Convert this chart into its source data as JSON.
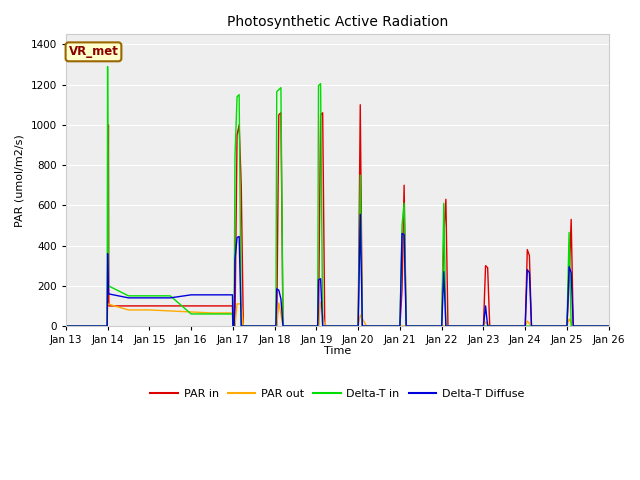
{
  "title": "Photosynthetic Active Radiation",
  "ylabel": "PAR (umol/m2/s)",
  "xlabel": "Time",
  "legend_label": "VR_met",
  "ylim": [
    0,
    1450
  ],
  "yticks": [
    0,
    200,
    400,
    600,
    800,
    1000,
    1200,
    1400
  ],
  "series_colors": {
    "PAR_in": "#dd0000",
    "PAR_out": "#ffaa00",
    "Delta_T_in": "#00dd00",
    "Delta_T_Diffuse": "#0000dd"
  },
  "series_labels": {
    "PAR_in": "PAR in",
    "PAR_out": "PAR out",
    "Delta_T_in": "Delta-T in",
    "Delta_T_Diffuse": "Delta-T Diffuse"
  },
  "background_color": "#ffffff",
  "plot_bg_color": "#eeeeee",
  "grid_color": "#ffffff",
  "x_start": 0,
  "x_end": 13,
  "xtick_positions": [
    0,
    1,
    2,
    3,
    4,
    5,
    6,
    7,
    8,
    9,
    10,
    11,
    12,
    13
  ],
  "xtick_labels": [
    "Jan 13",
    "Jan 14",
    "Jan 15",
    "Jan 16",
    "Jan 17",
    "Jan 18",
    "Jan 19",
    "Jan 20",
    "Jan 21",
    "Jan 22",
    "Jan 23",
    "Jan 24",
    "Jan 25",
    "Jan 26"
  ],
  "PAR_in": [
    [
      0,
      0
    ],
    [
      0.99,
      0
    ],
    [
      1.0,
      200
    ],
    [
      1.02,
      1000
    ],
    [
      1.03,
      100
    ],
    [
      1.5,
      100
    ],
    [
      2.0,
      100
    ],
    [
      2.5,
      100
    ],
    [
      3.0,
      100
    ],
    [
      3.5,
      100
    ],
    [
      3.99,
      100
    ],
    [
      4.0,
      0
    ],
    [
      4.05,
      0
    ],
    [
      4.1,
      950
    ],
    [
      4.15,
      1000
    ],
    [
      4.2,
      700
    ],
    [
      4.25,
      0
    ],
    [
      5.05,
      0
    ],
    [
      5.1,
      1050
    ],
    [
      5.15,
      1060
    ],
    [
      5.2,
      0
    ],
    [
      6.05,
      0
    ],
    [
      6.1,
      1050
    ],
    [
      6.15,
      1060
    ],
    [
      6.2,
      0
    ],
    [
      7.0,
      0
    ],
    [
      7.05,
      1100
    ],
    [
      7.1,
      0
    ],
    [
      8.0,
      0
    ],
    [
      8.05,
      180
    ],
    [
      8.1,
      700
    ],
    [
      8.15,
      0
    ],
    [
      9.0,
      0
    ],
    [
      9.05,
      450
    ],
    [
      9.1,
      630
    ],
    [
      9.15,
      0
    ],
    [
      10.0,
      0
    ],
    [
      10.05,
      300
    ],
    [
      10.1,
      290
    ],
    [
      10.15,
      0
    ],
    [
      11.0,
      0
    ],
    [
      11.05,
      380
    ],
    [
      11.1,
      350
    ],
    [
      11.15,
      0
    ],
    [
      12.0,
      0
    ],
    [
      12.05,
      220
    ],
    [
      12.1,
      530
    ],
    [
      12.15,
      0
    ],
    [
      13,
      0
    ]
  ],
  "PAR_out": [
    [
      0,
      0
    ],
    [
      0.99,
      0
    ],
    [
      1.0,
      110
    ],
    [
      1.5,
      80
    ],
    [
      2.0,
      80
    ],
    [
      2.5,
      75
    ],
    [
      3.0,
      70
    ],
    [
      3.5,
      65
    ],
    [
      3.99,
      65
    ],
    [
      4.0,
      0
    ],
    [
      4.05,
      0
    ],
    [
      4.1,
      110
    ],
    [
      4.2,
      110
    ],
    [
      4.25,
      0
    ],
    [
      5.05,
      0
    ],
    [
      5.1,
      115
    ],
    [
      5.2,
      0
    ],
    [
      6.05,
      0
    ],
    [
      6.1,
      120
    ],
    [
      6.2,
      0
    ],
    [
      7.0,
      0
    ],
    [
      7.05,
      55
    ],
    [
      7.2,
      0
    ],
    [
      8.0,
      0
    ],
    [
      8.15,
      0
    ],
    [
      9.0,
      0
    ],
    [
      9.15,
      0
    ],
    [
      10.0,
      0
    ],
    [
      10.05,
      20
    ],
    [
      10.15,
      0
    ],
    [
      11.0,
      0
    ],
    [
      11.05,
      25
    ],
    [
      11.15,
      0
    ],
    [
      12.0,
      0
    ],
    [
      12.05,
      35
    ],
    [
      12.15,
      0
    ],
    [
      13,
      0
    ]
  ],
  "Delta_T_in": [
    [
      0,
      0
    ],
    [
      0.99,
      0
    ],
    [
      1.0,
      1290
    ],
    [
      1.02,
      200
    ],
    [
      1.5,
      150
    ],
    [
      2.0,
      150
    ],
    [
      2.5,
      150
    ],
    [
      3.0,
      60
    ],
    [
      3.5,
      60
    ],
    [
      3.99,
      60
    ],
    [
      4.0,
      0
    ],
    [
      4.03,
      0
    ],
    [
      4.05,
      840
    ],
    [
      4.1,
      1140
    ],
    [
      4.15,
      1150
    ],
    [
      4.2,
      0
    ],
    [
      5.03,
      0
    ],
    [
      5.05,
      1165
    ],
    [
      5.1,
      1175
    ],
    [
      5.15,
      1185
    ],
    [
      5.2,
      0
    ],
    [
      6.03,
      0
    ],
    [
      6.05,
      1195
    ],
    [
      6.1,
      1205
    ],
    [
      6.15,
      0
    ],
    [
      7.0,
      0
    ],
    [
      7.05,
      750
    ],
    [
      7.1,
      0
    ],
    [
      8.0,
      0
    ],
    [
      8.05,
      500
    ],
    [
      8.1,
      610
    ],
    [
      8.15,
      0
    ],
    [
      9.0,
      0
    ],
    [
      9.05,
      610
    ],
    [
      9.1,
      0
    ],
    [
      10.0,
      0
    ],
    [
      10.05,
      0
    ],
    [
      11.0,
      0
    ],
    [
      11.05,
      0
    ],
    [
      12.0,
      0
    ],
    [
      12.05,
      465
    ],
    [
      12.1,
      0
    ],
    [
      13,
      0
    ]
  ],
  "Delta_T_Diffuse": [
    [
      0,
      0
    ],
    [
      0.99,
      0
    ],
    [
      1.0,
      360
    ],
    [
      1.02,
      160
    ],
    [
      1.5,
      140
    ],
    [
      2.0,
      140
    ],
    [
      2.5,
      140
    ],
    [
      3.0,
      155
    ],
    [
      3.5,
      155
    ],
    [
      3.99,
      155
    ],
    [
      4.0,
      0
    ],
    [
      4.03,
      0
    ],
    [
      4.05,
      330
    ],
    [
      4.1,
      440
    ],
    [
      4.15,
      445
    ],
    [
      4.2,
      0
    ],
    [
      5.03,
      0
    ],
    [
      5.05,
      185
    ],
    [
      5.1,
      178
    ],
    [
      5.15,
      135
    ],
    [
      5.2,
      0
    ],
    [
      6.03,
      0
    ],
    [
      6.05,
      230
    ],
    [
      6.1,
      235
    ],
    [
      6.15,
      0
    ],
    [
      7.0,
      0
    ],
    [
      7.05,
      555
    ],
    [
      7.1,
      0
    ],
    [
      8.0,
      0
    ],
    [
      8.05,
      460
    ],
    [
      8.1,
      455
    ],
    [
      8.15,
      0
    ],
    [
      9.0,
      0
    ],
    [
      9.05,
      270
    ],
    [
      9.1,
      0
    ],
    [
      10.0,
      0
    ],
    [
      10.05,
      100
    ],
    [
      10.1,
      0
    ],
    [
      11.0,
      0
    ],
    [
      11.05,
      280
    ],
    [
      11.1,
      265
    ],
    [
      11.15,
      0
    ],
    [
      12.0,
      0
    ],
    [
      12.05,
      295
    ],
    [
      12.1,
      265
    ],
    [
      12.15,
      0
    ],
    [
      13,
      0
    ]
  ]
}
